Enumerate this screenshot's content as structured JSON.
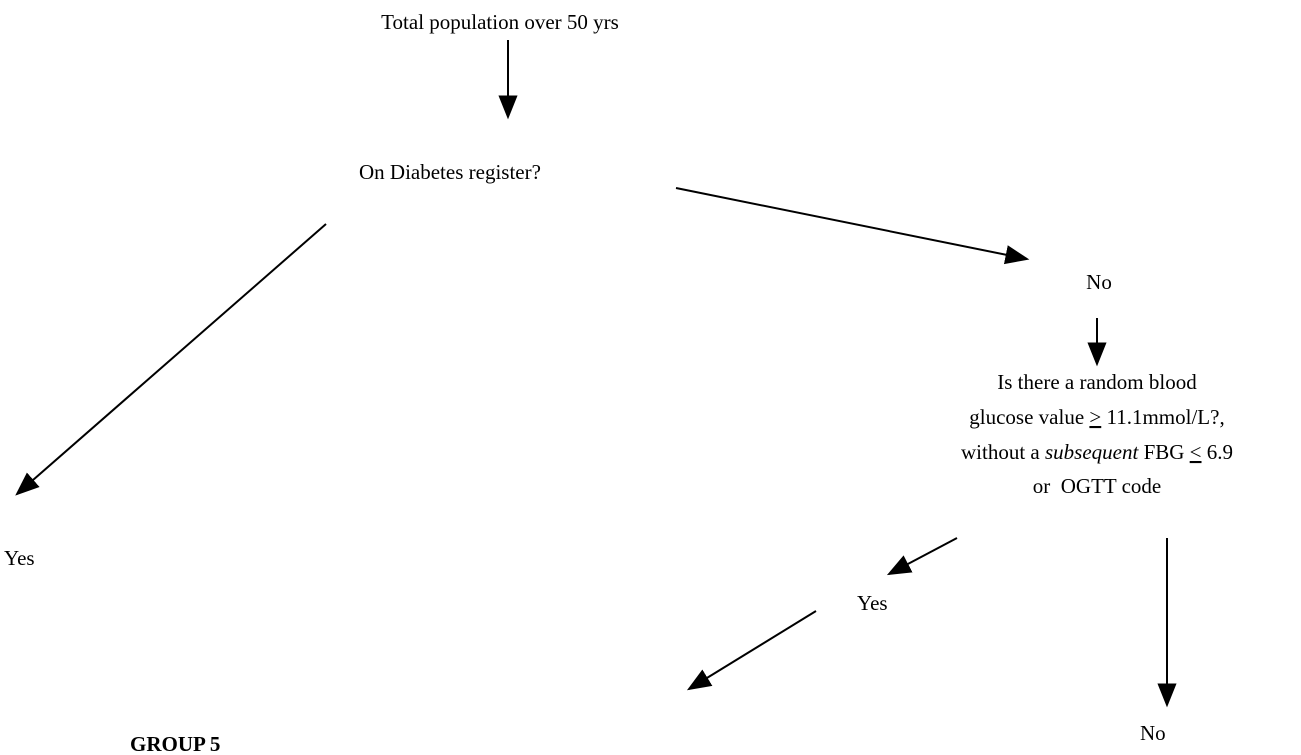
{
  "nodes": [
    {
      "label": "Total population over 50 yrs"
    },
    {
      "label": "On Diabetes register?"
    },
    {
      "label": "No"
    },
    {
      "lines": [
        [
          "Is there a random blood"
        ],
        [
          "glucose value ",
          ">",
          " 11.1mmol/L?,"
        ],
        [
          "without a ",
          "subsequent",
          " FBG ",
          "<",
          " 6.9"
        ],
        [
          "or  OGTT code"
        ]
      ]
    },
    {
      "label": "Yes"
    },
    {
      "label": "Yes"
    },
    {
      "label": "No"
    },
    {
      "label": "GROUP 5"
    }
  ]
}
